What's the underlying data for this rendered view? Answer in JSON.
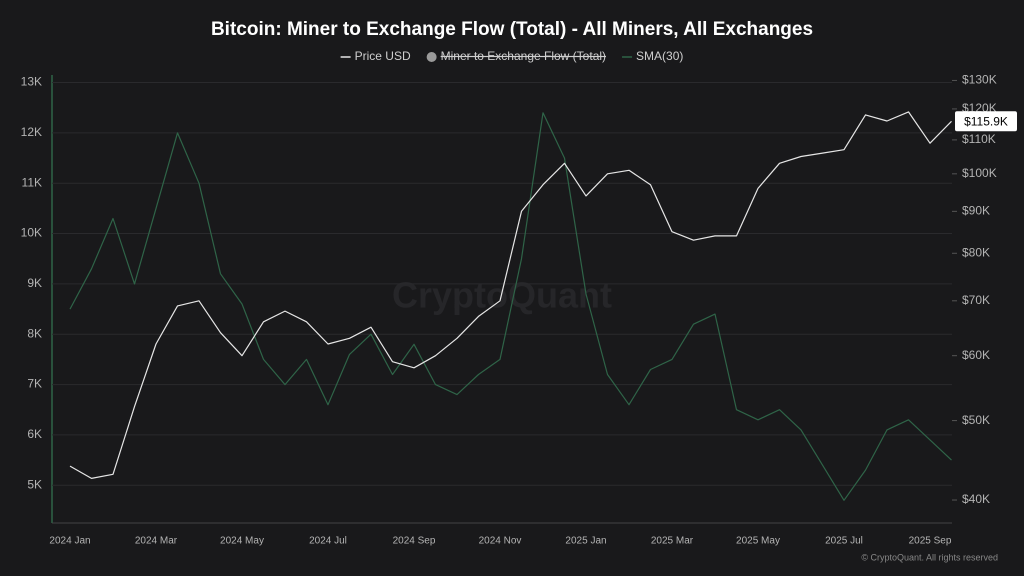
{
  "chart_data": {
    "type": "line",
    "title": "Bitcoin: Miner to Exchange Flow (Total) - All Miners, All Exchanges",
    "watermark": "CryptoQuant",
    "footer": "© CryptoQuant. All rights reserved",
    "categories": [
      "2024 Jan",
      null,
      null,
      null,
      "2024 Mar",
      null,
      null,
      null,
      "2024 May",
      null,
      null,
      null,
      "2024 Jul",
      null,
      null,
      null,
      "2024 Sep",
      null,
      null,
      null,
      "2024 Nov",
      null,
      null,
      null,
      "2025 Jan",
      null,
      null,
      null,
      "2025 Mar",
      null,
      null,
      null,
      "2025 May",
      null,
      null,
      null,
      "2025 Jul",
      null,
      null,
      null,
      "2025 Sep",
      null
    ],
    "series": [
      {
        "name": "Price USD",
        "color": "#e6e6e6",
        "axis": "y2",
        "visible": true,
        "values": [
          44000,
          42500,
          43000,
          52000,
          62000,
          69000,
          70000,
          64000,
          60000,
          66000,
          68000,
          66000,
          62000,
          63000,
          65000,
          59000,
          58000,
          60000,
          63000,
          67000,
          70000,
          90000,
          97000,
          103000,
          94000,
          100000,
          101000,
          97000,
          85000,
          83000,
          84000,
          84000,
          96000,
          103000,
          105000,
          106000,
          107000,
          118000,
          116000,
          119000,
          109000,
          115900
        ]
      },
      {
        "name": "Miner to Exchange Flow (Total)",
        "color": "#9a9a9a",
        "visible": false
      },
      {
        "name": "SMA(30)",
        "color": "#2f6448",
        "axis": "y",
        "visible": true,
        "values": [
          8500,
          9300,
          10300,
          9000,
          10500,
          12000,
          11000,
          9200,
          8600,
          7500,
          7000,
          7500,
          6600,
          7600,
          8000,
          7200,
          7800,
          7000,
          6800,
          7200,
          7500,
          9500,
          12400,
          11500,
          8800,
          7200,
          6600,
          7300,
          7500,
          8200,
          8400,
          6500,
          6300,
          6500,
          6100,
          5400,
          4700,
          5300,
          6100,
          6300,
          5900,
          5500
        ]
      }
    ],
    "ylim": [
      4250,
      13150
    ],
    "yticks": [
      {
        "value": 5000,
        "label": "5K"
      },
      {
        "value": 6000,
        "label": "6K"
      },
      {
        "value": 7000,
        "label": "7K"
      },
      {
        "value": 8000,
        "label": "8K"
      },
      {
        "value": 9000,
        "label": "9K"
      },
      {
        "value": 10000,
        "label": "10K"
      },
      {
        "value": 11000,
        "label": "11K"
      },
      {
        "value": 12000,
        "label": "12K"
      },
      {
        "value": 13000,
        "label": "13K"
      }
    ],
    "y2lim": [
      37500,
      132000
    ],
    "y2_log": true,
    "y2ticks": [
      {
        "value": 40000,
        "label": "$40K"
      },
      {
        "value": 50000,
        "label": "$50K"
      },
      {
        "value": 60000,
        "label": "$60K"
      },
      {
        "value": 70000,
        "label": "$70K"
      },
      {
        "value": 80000,
        "label": "$80K"
      },
      {
        "value": 90000,
        "label": "$90K"
      },
      {
        "value": 100000,
        "label": "$100K"
      },
      {
        "value": 110000,
        "label": "$110K"
      },
      {
        "value": 120000,
        "label": "$120K"
      },
      {
        "value": 130000,
        "label": "$130K"
      }
    ],
    "current_price": {
      "value": 115900,
      "label": "$115.9K"
    },
    "grid": true
  }
}
